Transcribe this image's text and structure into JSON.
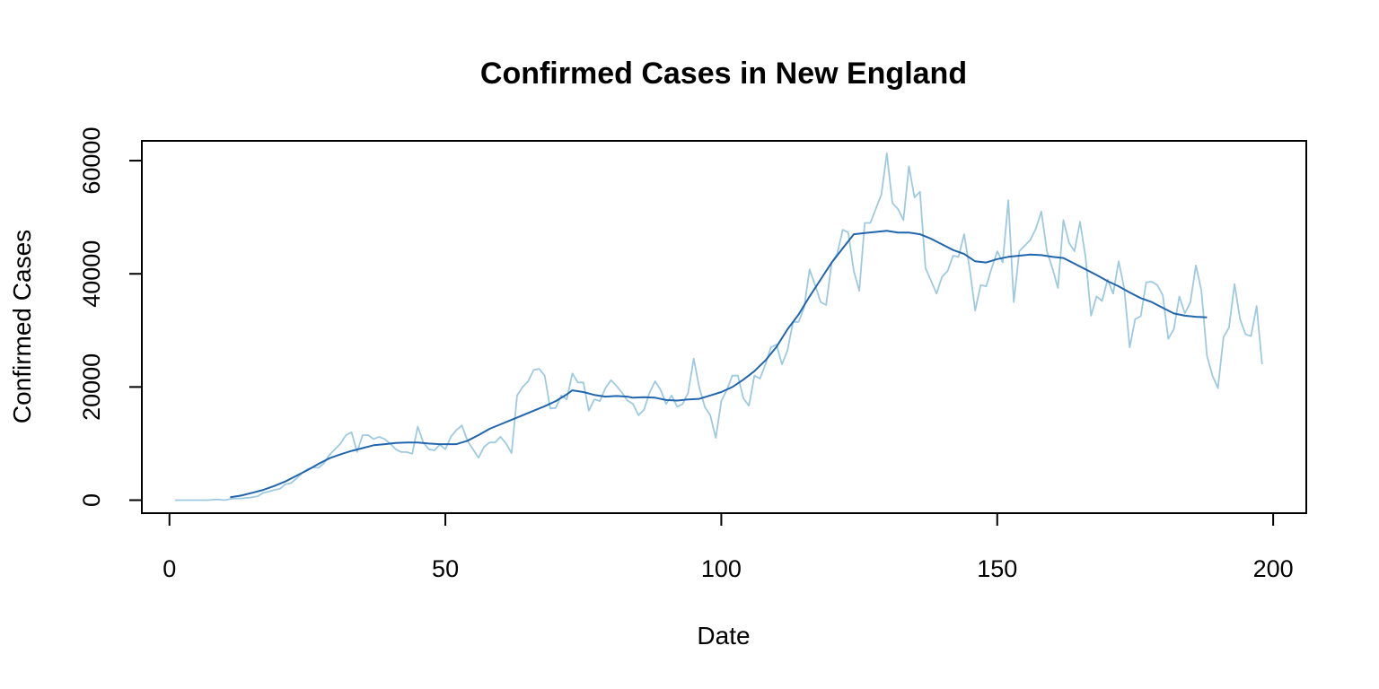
{
  "chart_data": {
    "type": "line",
    "title": "Confirmed Cases in New England",
    "xlabel": "Date",
    "ylabel": "Confirmed Cases",
    "xlim": [
      -5,
      206
    ],
    "ylim": [
      -2300,
      63500
    ],
    "x_ticks": [
      0,
      50,
      100,
      150,
      200
    ],
    "y_ticks": [
      0,
      20000,
      40000,
      60000
    ],
    "x_tick_labels": [
      "0",
      "50",
      "100",
      "150",
      "200"
    ],
    "y_tick_labels": [
      "0",
      "20000",
      "40000",
      "60000"
    ],
    "grid": false,
    "legend": "none",
    "series": [
      {
        "role": "daily",
        "color": "#9ecae1",
        "points": [
          [
            1,
            0
          ],
          [
            2,
            0
          ],
          [
            3,
            0
          ],
          [
            4,
            0
          ],
          [
            5,
            0
          ],
          [
            6,
            0
          ],
          [
            7,
            0
          ],
          [
            8,
            100
          ],
          [
            9,
            100
          ],
          [
            10,
            0
          ],
          [
            11,
            200
          ],
          [
            12,
            300
          ],
          [
            13,
            300
          ],
          [
            14,
            400
          ],
          [
            15,
            500
          ],
          [
            16,
            700
          ],
          [
            17,
            1300
          ],
          [
            18,
            1500
          ],
          [
            19,
            1800
          ],
          [
            20,
            2000
          ],
          [
            21,
            2800
          ],
          [
            22,
            3000
          ],
          [
            23,
            3800
          ],
          [
            24,
            4800
          ],
          [
            25,
            5500
          ],
          [
            26,
            5800
          ],
          [
            27,
            5700
          ],
          [
            28,
            6500
          ],
          [
            29,
            8000
          ],
          [
            30,
            9000
          ],
          [
            31,
            10000
          ],
          [
            32,
            11500
          ],
          [
            33,
            12000
          ],
          [
            34,
            8500
          ],
          [
            35,
            11500
          ],
          [
            36,
            11500
          ],
          [
            37,
            10800
          ],
          [
            38,
            11200
          ],
          [
            39,
            10800
          ],
          [
            40,
            10000
          ],
          [
            41,
            9000
          ],
          [
            42,
            8500
          ],
          [
            43,
            8500
          ],
          [
            44,
            8200
          ],
          [
            45,
            13000
          ],
          [
            46,
            10200
          ],
          [
            47,
            9000
          ],
          [
            48,
            8800
          ],
          [
            49,
            9800
          ],
          [
            50,
            9000
          ],
          [
            51,
            11200
          ],
          [
            52,
            12400
          ],
          [
            53,
            13200
          ],
          [
            54,
            10500
          ],
          [
            55,
            9000
          ],
          [
            56,
            7500
          ],
          [
            57,
            9400
          ],
          [
            58,
            10200
          ],
          [
            59,
            10200
          ],
          [
            60,
            11200
          ],
          [
            61,
            10000
          ],
          [
            62,
            8300
          ],
          [
            63,
            18500
          ],
          [
            64,
            20000
          ],
          [
            65,
            21000
          ],
          [
            66,
            23000
          ],
          [
            67,
            23200
          ],
          [
            68,
            22000
          ],
          [
            69,
            16200
          ],
          [
            70,
            16300
          ],
          [
            71,
            18500
          ],
          [
            72,
            17800
          ],
          [
            73,
            22400
          ],
          [
            74,
            20800
          ],
          [
            75,
            20800
          ],
          [
            76,
            15800
          ],
          [
            77,
            17800
          ],
          [
            78,
            17500
          ],
          [
            79,
            19800
          ],
          [
            80,
            21200
          ],
          [
            81,
            20200
          ],
          [
            82,
            19000
          ],
          [
            83,
            17600
          ],
          [
            84,
            17000
          ],
          [
            85,
            15000
          ],
          [
            86,
            16000
          ],
          [
            87,
            19000
          ],
          [
            88,
            21000
          ],
          [
            89,
            19500
          ],
          [
            90,
            17000
          ],
          [
            91,
            18500
          ],
          [
            92,
            16500
          ],
          [
            93,
            17000
          ],
          [
            94,
            19000
          ],
          [
            95,
            25000
          ],
          [
            96,
            20000
          ],
          [
            97,
            16500
          ],
          [
            98,
            15000
          ],
          [
            99,
            11000
          ],
          [
            100,
            17500
          ],
          [
            101,
            19500
          ],
          [
            102,
            22000
          ],
          [
            103,
            22000
          ],
          [
            104,
            18000
          ],
          [
            105,
            16700
          ],
          [
            106,
            22000
          ],
          [
            107,
            21500
          ],
          [
            108,
            24000
          ],
          [
            109,
            27000
          ],
          [
            110,
            27500
          ],
          [
            111,
            24000
          ],
          [
            112,
            26500
          ],
          [
            113,
            31500
          ],
          [
            114,
            31500
          ],
          [
            115,
            34000
          ],
          [
            116,
            40800
          ],
          [
            117,
            38000
          ],
          [
            118,
            35000
          ],
          [
            119,
            34500
          ],
          [
            120,
            42000
          ],
          [
            121,
            43500
          ],
          [
            122,
            47800
          ],
          [
            123,
            47300
          ],
          [
            124,
            40500
          ],
          [
            125,
            37000
          ],
          [
            126,
            49000
          ],
          [
            127,
            49000
          ],
          [
            128,
            51500
          ],
          [
            129,
            54000
          ],
          [
            130,
            61300
          ],
          [
            131,
            52500
          ],
          [
            132,
            51500
          ],
          [
            133,
            49500
          ],
          [
            134,
            59000
          ],
          [
            135,
            53500
          ],
          [
            136,
            54500
          ],
          [
            137,
            41000
          ],
          [
            138,
            38800
          ],
          [
            139,
            36500
          ],
          [
            140,
            39500
          ],
          [
            141,
            40500
          ],
          [
            142,
            43200
          ],
          [
            143,
            43000
          ],
          [
            144,
            47000
          ],
          [
            145,
            41000
          ],
          [
            146,
            33500
          ],
          [
            147,
            38000
          ],
          [
            148,
            37800
          ],
          [
            149,
            41000
          ],
          [
            150,
            44000
          ],
          [
            151,
            42000
          ],
          [
            152,
            53000
          ],
          [
            153,
            35000
          ],
          [
            154,
            44000
          ],
          [
            155,
            45000
          ],
          [
            156,
            46000
          ],
          [
            157,
            48000
          ],
          [
            158,
            51000
          ],
          [
            159,
            44000
          ],
          [
            160,
            41000
          ],
          [
            161,
            37500
          ],
          [
            162,
            49500
          ],
          [
            163,
            45500
          ],
          [
            164,
            44000
          ],
          [
            165,
            49200
          ],
          [
            166,
            43000
          ],
          [
            167,
            32600
          ],
          [
            168,
            36000
          ],
          [
            169,
            35200
          ],
          [
            170,
            39000
          ],
          [
            171,
            36500
          ],
          [
            172,
            42200
          ],
          [
            173,
            37500
          ],
          [
            174,
            27000
          ],
          [
            175,
            32000
          ],
          [
            176,
            32500
          ],
          [
            177,
            38500
          ],
          [
            178,
            38600
          ],
          [
            179,
            38000
          ],
          [
            180,
            36200
          ],
          [
            181,
            28500
          ],
          [
            182,
            30200
          ],
          [
            183,
            36000
          ],
          [
            184,
            33000
          ],
          [
            185,
            35000
          ],
          [
            186,
            41500
          ],
          [
            187,
            37000
          ],
          [
            188,
            25500
          ],
          [
            189,
            22000
          ],
          [
            190,
            19800
          ],
          [
            191,
            28800
          ],
          [
            192,
            30500
          ],
          [
            193,
            38200
          ],
          [
            194,
            32000
          ],
          [
            195,
            29300
          ],
          [
            196,
            29000
          ],
          [
            197,
            34300
          ],
          [
            198,
            24000
          ]
        ]
      },
      {
        "role": "smoothed",
        "color": "#2166ac",
        "points": [
          [
            11,
            500
          ],
          [
            13,
            800
          ],
          [
            15,
            1300
          ],
          [
            17,
            1800
          ],
          [
            19,
            2500
          ],
          [
            21,
            3300
          ],
          [
            23,
            4300
          ],
          [
            25,
            5300
          ],
          [
            27,
            6400
          ],
          [
            29,
            7400
          ],
          [
            31,
            8100
          ],
          [
            33,
            8700
          ],
          [
            35,
            9200
          ],
          [
            37,
            9700
          ],
          [
            39,
            9900
          ],
          [
            41,
            10100
          ],
          [
            43,
            10200
          ],
          [
            45,
            10200
          ],
          [
            47,
            10000
          ],
          [
            49,
            9900
          ],
          [
            51,
            9900
          ],
          [
            52,
            9900
          ],
          [
            54,
            10500
          ],
          [
            56,
            11500
          ],
          [
            58,
            12600
          ],
          [
            60,
            13400
          ],
          [
            62,
            14200
          ],
          [
            64,
            15000
          ],
          [
            66,
            15800
          ],
          [
            68,
            16600
          ],
          [
            70,
            17500
          ],
          [
            72,
            18700
          ],
          [
            73,
            19400
          ],
          [
            75,
            19100
          ],
          [
            77,
            18600
          ],
          [
            79,
            18300
          ],
          [
            81,
            18400
          ],
          [
            83,
            18300
          ],
          [
            84,
            18100
          ],
          [
            86,
            18200
          ],
          [
            88,
            18100
          ],
          [
            90,
            17700
          ],
          [
            92,
            17600
          ],
          [
            94,
            17800
          ],
          [
            96,
            17900
          ],
          [
            98,
            18500
          ],
          [
            100,
            19100
          ],
          [
            102,
            20000
          ],
          [
            104,
            21300
          ],
          [
            106,
            22800
          ],
          [
            108,
            24700
          ],
          [
            110,
            27100
          ],
          [
            112,
            30200
          ],
          [
            114,
            32800
          ],
          [
            116,
            36000
          ],
          [
            118,
            39000
          ],
          [
            120,
            42000
          ],
          [
            122,
            44500
          ],
          [
            124,
            47000
          ],
          [
            126,
            47200
          ],
          [
            128,
            47400
          ],
          [
            130,
            47600
          ],
          [
            132,
            47300
          ],
          [
            134,
            47300
          ],
          [
            136,
            47000
          ],
          [
            138,
            46200
          ],
          [
            140,
            45200
          ],
          [
            142,
            44200
          ],
          [
            144,
            43500
          ],
          [
            146,
            42200
          ],
          [
            148,
            42000
          ],
          [
            150,
            42600
          ],
          [
            152,
            43000
          ],
          [
            154,
            43200
          ],
          [
            156,
            43400
          ],
          [
            158,
            43300
          ],
          [
            160,
            43000
          ],
          [
            162,
            42800
          ],
          [
            164,
            41800
          ],
          [
            166,
            40800
          ],
          [
            168,
            39800
          ],
          [
            170,
            38700
          ],
          [
            172,
            37800
          ],
          [
            174,
            36700
          ],
          [
            176,
            35700
          ],
          [
            178,
            35000
          ],
          [
            180,
            34000
          ],
          [
            182,
            33000
          ],
          [
            184,
            32600
          ],
          [
            186,
            32400
          ],
          [
            188,
            32300
          ]
        ]
      }
    ]
  }
}
